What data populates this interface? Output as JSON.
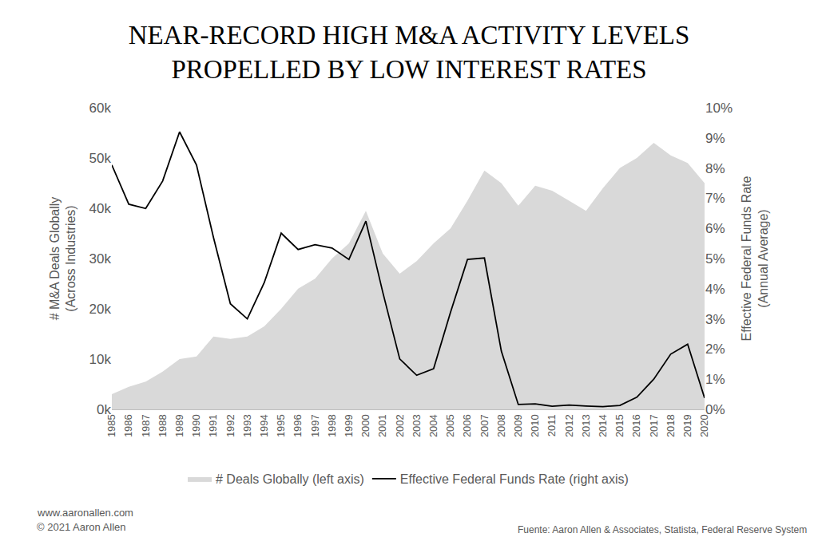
{
  "chart_data": {
    "type": "combo",
    "title": "NEAR-RECORD HIGH M&A ACTIVITY LEVELS\nPROPELLED BY LOW INTEREST RATES",
    "y_label": "# M&A Deals Globally\n(Across Industries)",
    "y2_label": "Effective Federal Funds Rate\n(Annual Average)",
    "annotations": [
      "www.aaronallen.com",
      "© 2021 Aaron Allen",
      "Fuente: Aaron Allen & Associates, Statista, Federal Reserve System"
    ],
    "x": [
      1985,
      1986,
      1987,
      1988,
      1989,
      1990,
      1991,
      1992,
      1993,
      1994,
      1995,
      1996,
      1997,
      1998,
      1999,
      2000,
      2001,
      2002,
      2003,
      2004,
      2005,
      2006,
      2007,
      2008,
      2009,
      2010,
      2011,
      2012,
      2013,
      2014,
      2015,
      2016,
      2017,
      2018,
      2019,
      2020
    ],
    "xlim": [
      1985,
      2020
    ],
    "xticks": [
      1985,
      1986,
      1987,
      1988,
      1989,
      1990,
      1991,
      1992,
      1993,
      1994,
      1995,
      1996,
      1997,
      1998,
      1999,
      2000,
      2001,
      2002,
      2003,
      2004,
      2005,
      2006,
      2007,
      2008,
      2009,
      2010,
      2011,
      2012,
      2013,
      2014,
      2015,
      2016,
      2017,
      2018,
      2019,
      2020
    ],
    "ylim": [
      0,
      60000
    ],
    "yticks": [
      {
        "value": 0,
        "label": "0k"
      },
      {
        "value": 10000,
        "label": "10k"
      },
      {
        "value": 20000,
        "label": "20k"
      },
      {
        "value": 30000,
        "label": "30k"
      },
      {
        "value": 40000,
        "label": "40k"
      },
      {
        "value": 50000,
        "label": "50k"
      },
      {
        "value": 60000,
        "label": "60k"
      }
    ],
    "y2lim": [
      0,
      10
    ],
    "y2ticks": [
      {
        "value": 0,
        "label": "0%"
      },
      {
        "value": 1,
        "label": "1%"
      },
      {
        "value": 2,
        "label": "2%"
      },
      {
        "value": 3,
        "label": "3%"
      },
      {
        "value": 4,
        "label": "4%"
      },
      {
        "value": 5,
        "label": "5%"
      },
      {
        "value": 6,
        "label": "6%"
      },
      {
        "value": 7,
        "label": "7%"
      },
      {
        "value": 8,
        "label": "8%"
      },
      {
        "value": 9,
        "label": "9%"
      },
      {
        "value": 10,
        "label": "10%"
      }
    ],
    "grid": false,
    "legend": "bottom",
    "series": [
      {
        "name": "# Deals Globally (left axis)",
        "type": "area",
        "color": "#d9d9d9",
        "values": [
          3000,
          4500,
          5500,
          7500,
          10000,
          10500,
          14500,
          14000,
          14500,
          16500,
          20000,
          24000,
          26000,
          30000,
          33000,
          39500,
          31000,
          27000,
          29500,
          33000,
          36000,
          41500,
          47500,
          45000,
          40500,
          44500,
          43500,
          41500,
          39500,
          44000,
          48000,
          50000,
          53000,
          50500,
          49000,
          45000
        ]
      },
      {
        "name": "Effective Federal Funds Rate (right axis)",
        "type": "line",
        "color": "#000000",
        "axis": "y2",
        "values": [
          8.1,
          6.8,
          6.66,
          7.57,
          9.2,
          8.1,
          5.7,
          3.5,
          3.0,
          4.2,
          5.84,
          5.3,
          5.46,
          5.35,
          4.97,
          6.24,
          3.88,
          1.67,
          1.13,
          1.35,
          3.22,
          4.97,
          5.02,
          1.93,
          0.16,
          0.18,
          0.1,
          0.14,
          0.11,
          0.09,
          0.13,
          0.4,
          1.0,
          1.83,
          2.16,
          0.38
        ]
      }
    ]
  }
}
